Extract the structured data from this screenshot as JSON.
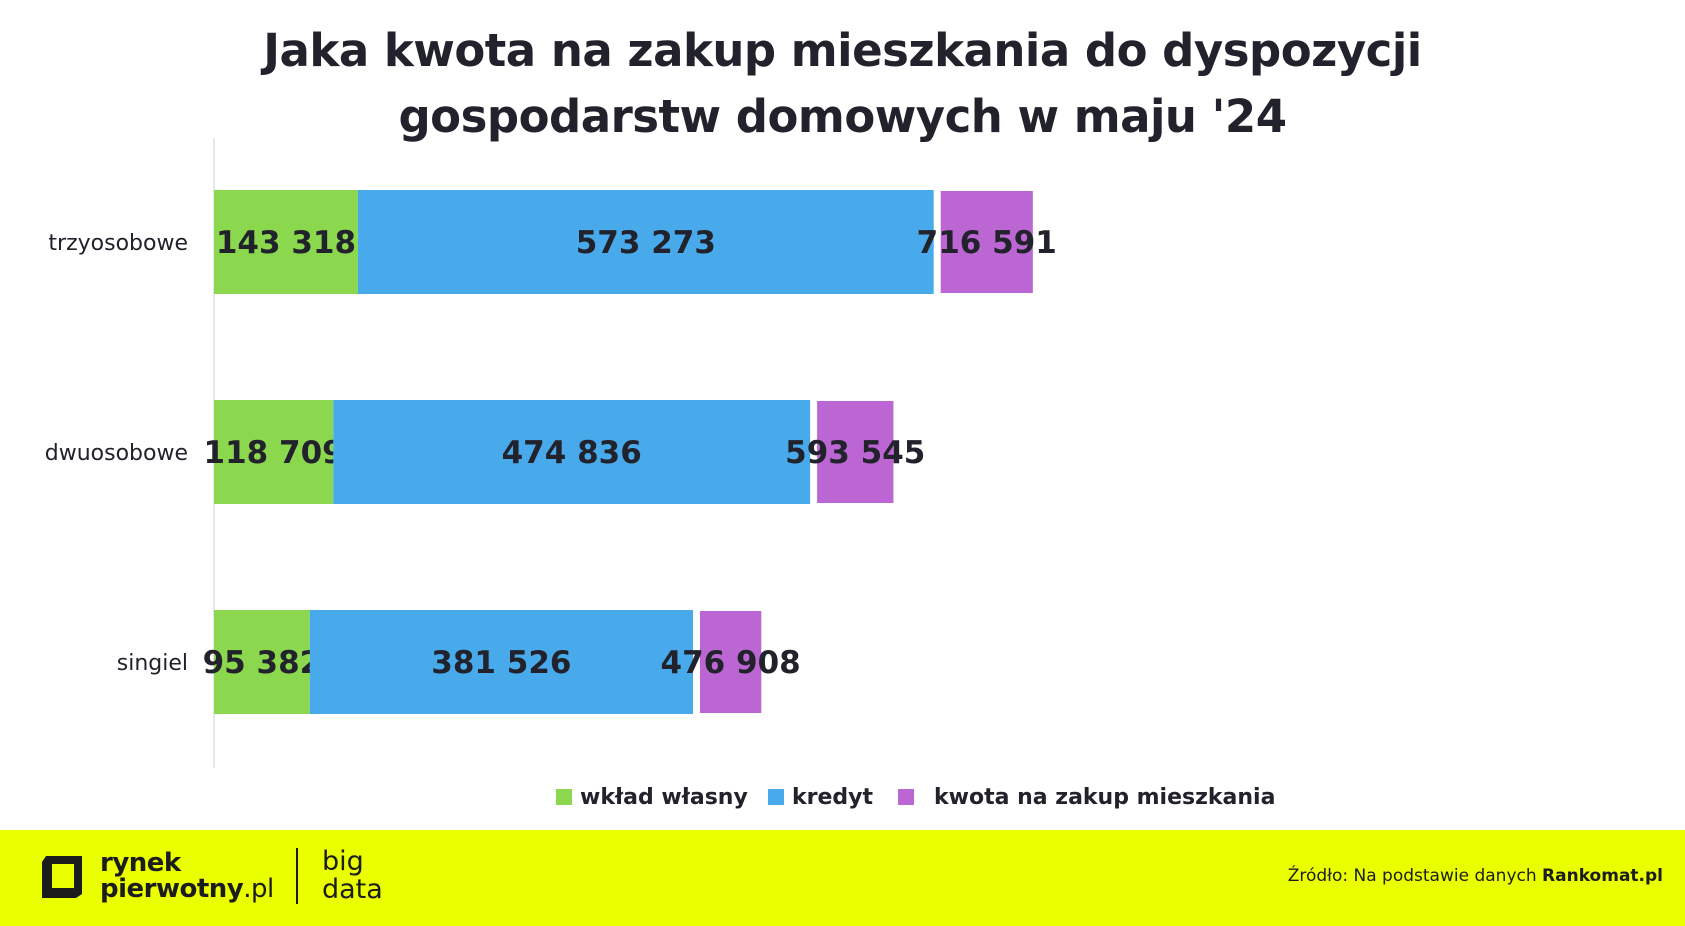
{
  "chart_data": {
    "type": "bar",
    "orientation": "horizontal",
    "title": "Jaka kwota na zakup mieszkania do dyspozycji gospodarstw domowych w maju '24",
    "title_lines": [
      "Jaka kwota na zakup mieszkania do dyspozycji",
      "gospodarstw domowych w maju '24"
    ],
    "categories": [
      "trzyosobowe",
      "dwuosobowe",
      "singiel"
    ],
    "stack_series": [
      {
        "name": "wkład własny",
        "values": [
          143318,
          118709,
          95382
        ],
        "labels": [
          "143 318",
          "118 709",
          "95 382"
        ],
        "color": "#8bd84e"
      },
      {
        "name": "kredyt",
        "values": [
          573273,
          474836,
          381526
        ],
        "labels": [
          "573 273",
          "474 836",
          "381 526"
        ],
        "color": "#48aaeb"
      }
    ],
    "total_series": {
      "name": "kwota na zakup mieszkania",
      "values": [
        716591,
        593545,
        476908
      ],
      "labels": [
        "716 591",
        "593 545",
        "476 908"
      ],
      "color": "#bb66d3"
    },
    "legend_position": "bottom",
    "grid": false,
    "xlim": [
      0,
      1380000
    ]
  },
  "footer": {
    "logo_line1": "rynek",
    "logo_line2_main": "pierwotny",
    "logo_line2_suffix": ".pl",
    "bigdata_line1": "big",
    "bigdata_line2": "data",
    "source_prefix": "Źródło: Na podstawie danych ",
    "source_name": "Rankomat.pl",
    "background_color": "#eaff00"
  }
}
